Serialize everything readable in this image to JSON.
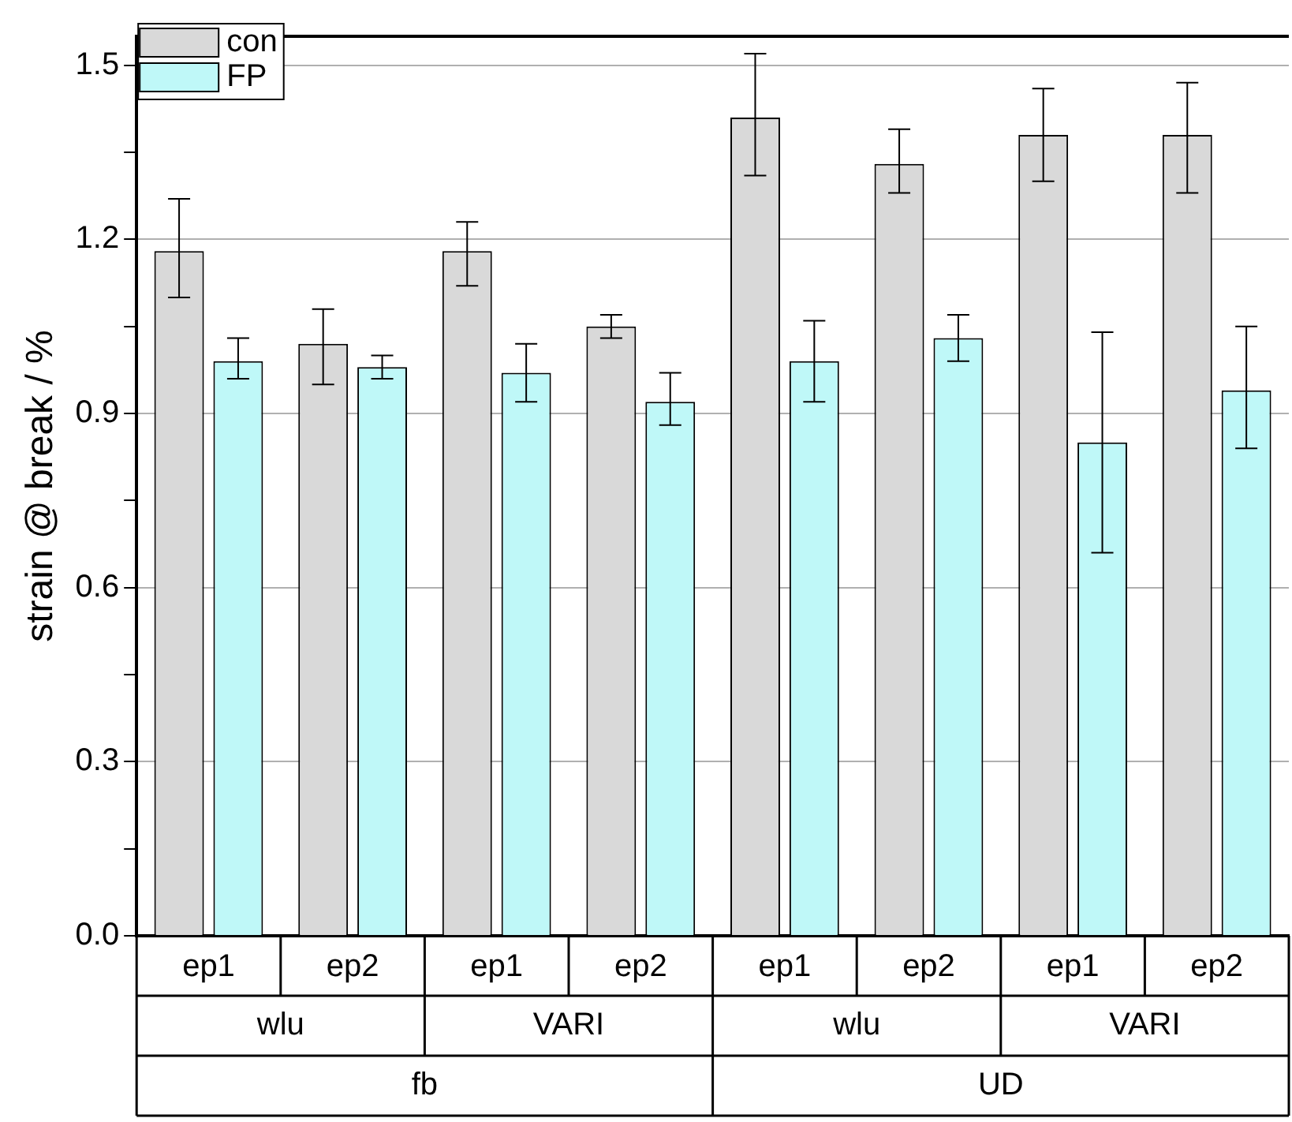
{
  "chart_data": {
    "type": "bar",
    "ylabel": "strain @ break / %",
    "categories": [
      "ep1",
      "ep2",
      "ep1",
      "ep2",
      "ep1",
      "ep2",
      "ep1",
      "ep2"
    ],
    "annotations": [
      "wlu",
      "VARI",
      "wlu",
      "VARI",
      "fb",
      "UD"
    ],
    "series": [
      {
        "name": "con",
        "color": "#d9d9d9",
        "values": [
          1.18,
          1.02,
          1.18,
          1.05,
          1.41,
          1.33,
          1.38,
          1.38
        ],
        "errors": [
          [
            1.1,
            1.27
          ],
          [
            0.95,
            1.08
          ],
          [
            1.12,
            1.23
          ],
          [
            1.03,
            1.07
          ],
          [
            1.31,
            1.52
          ],
          [
            1.28,
            1.39
          ],
          [
            1.3,
            1.46
          ],
          [
            1.28,
            1.47
          ]
        ]
      },
      {
        "name": "FP",
        "color": "#bff8f8",
        "values": [
          0.99,
          0.98,
          0.97,
          0.92,
          0.99,
          1.03,
          0.85,
          0.94
        ],
        "errors": [
          [
            0.96,
            1.03
          ],
          [
            0.96,
            1.0
          ],
          [
            0.92,
            1.02
          ],
          [
            0.88,
            0.97
          ],
          [
            0.92,
            1.06
          ],
          [
            0.99,
            1.07
          ],
          [
            0.66,
            1.04
          ],
          [
            0.84,
            1.05
          ]
        ]
      }
    ],
    "ylim": [
      0,
      1.55
    ],
    "yticks": [
      {
        "value": 0,
        "label": "0.0"
      },
      {
        "value": 0.15,
        "label": null
      },
      {
        "value": 0.3,
        "label": "0.3"
      },
      {
        "value": 0.45,
        "label": null
      },
      {
        "value": 0.6,
        "label": "0.6"
      },
      {
        "value": 0.75,
        "label": null
      },
      {
        "value": 0.9,
        "label": "0.9"
      },
      {
        "value": 1.05,
        "label": null
      },
      {
        "value": 1.2,
        "label": "1.2"
      },
      {
        "value": 1.35,
        "label": null
      },
      {
        "value": 1.5,
        "label": "1.5"
      }
    ],
    "grid": "y",
    "legend": "top left"
  }
}
